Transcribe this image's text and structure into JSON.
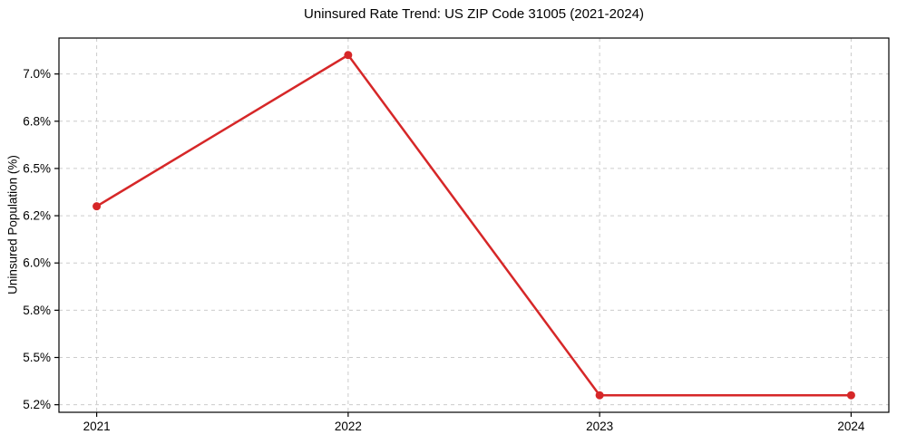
{
  "figure": {
    "background": "#ffffff"
  },
  "chart_data": {
    "type": "line",
    "title": "Uninsured Rate Trend: US ZIP Code 31005 (2021-2024)",
    "xlabel": "",
    "ylabel": "Uninsured Population (%)",
    "x": [
      2021,
      2022,
      2023,
      2024
    ],
    "x_tick_labels": [
      "2021",
      "2022",
      "2023",
      "2024"
    ],
    "series": [
      {
        "name": "Uninsured Population (%)",
        "values": [
          6.3,
          7.1,
          5.3,
          5.3
        ],
        "color": "#d62728",
        "marker": "circle"
      }
    ],
    "xlim": [
      2020.85,
      2024.15
    ],
    "ylim": [
      5.21,
      7.19
    ],
    "y_ticks": [
      5.25,
      5.5,
      5.75,
      6.0,
      6.25,
      6.5,
      6.75,
      7.0
    ],
    "y_tick_labels": [
      "5.2%",
      "5.5%",
      "5.8%",
      "6.0%",
      "6.2%",
      "6.5%",
      "6.8%",
      "7.0%"
    ],
    "grid": true,
    "grid_color": "#cccccc",
    "grid_dash": "4 4",
    "spine_color": "#000000",
    "line_width": 2.5,
    "marker_size": 4.5,
    "legend_position": "none"
  }
}
